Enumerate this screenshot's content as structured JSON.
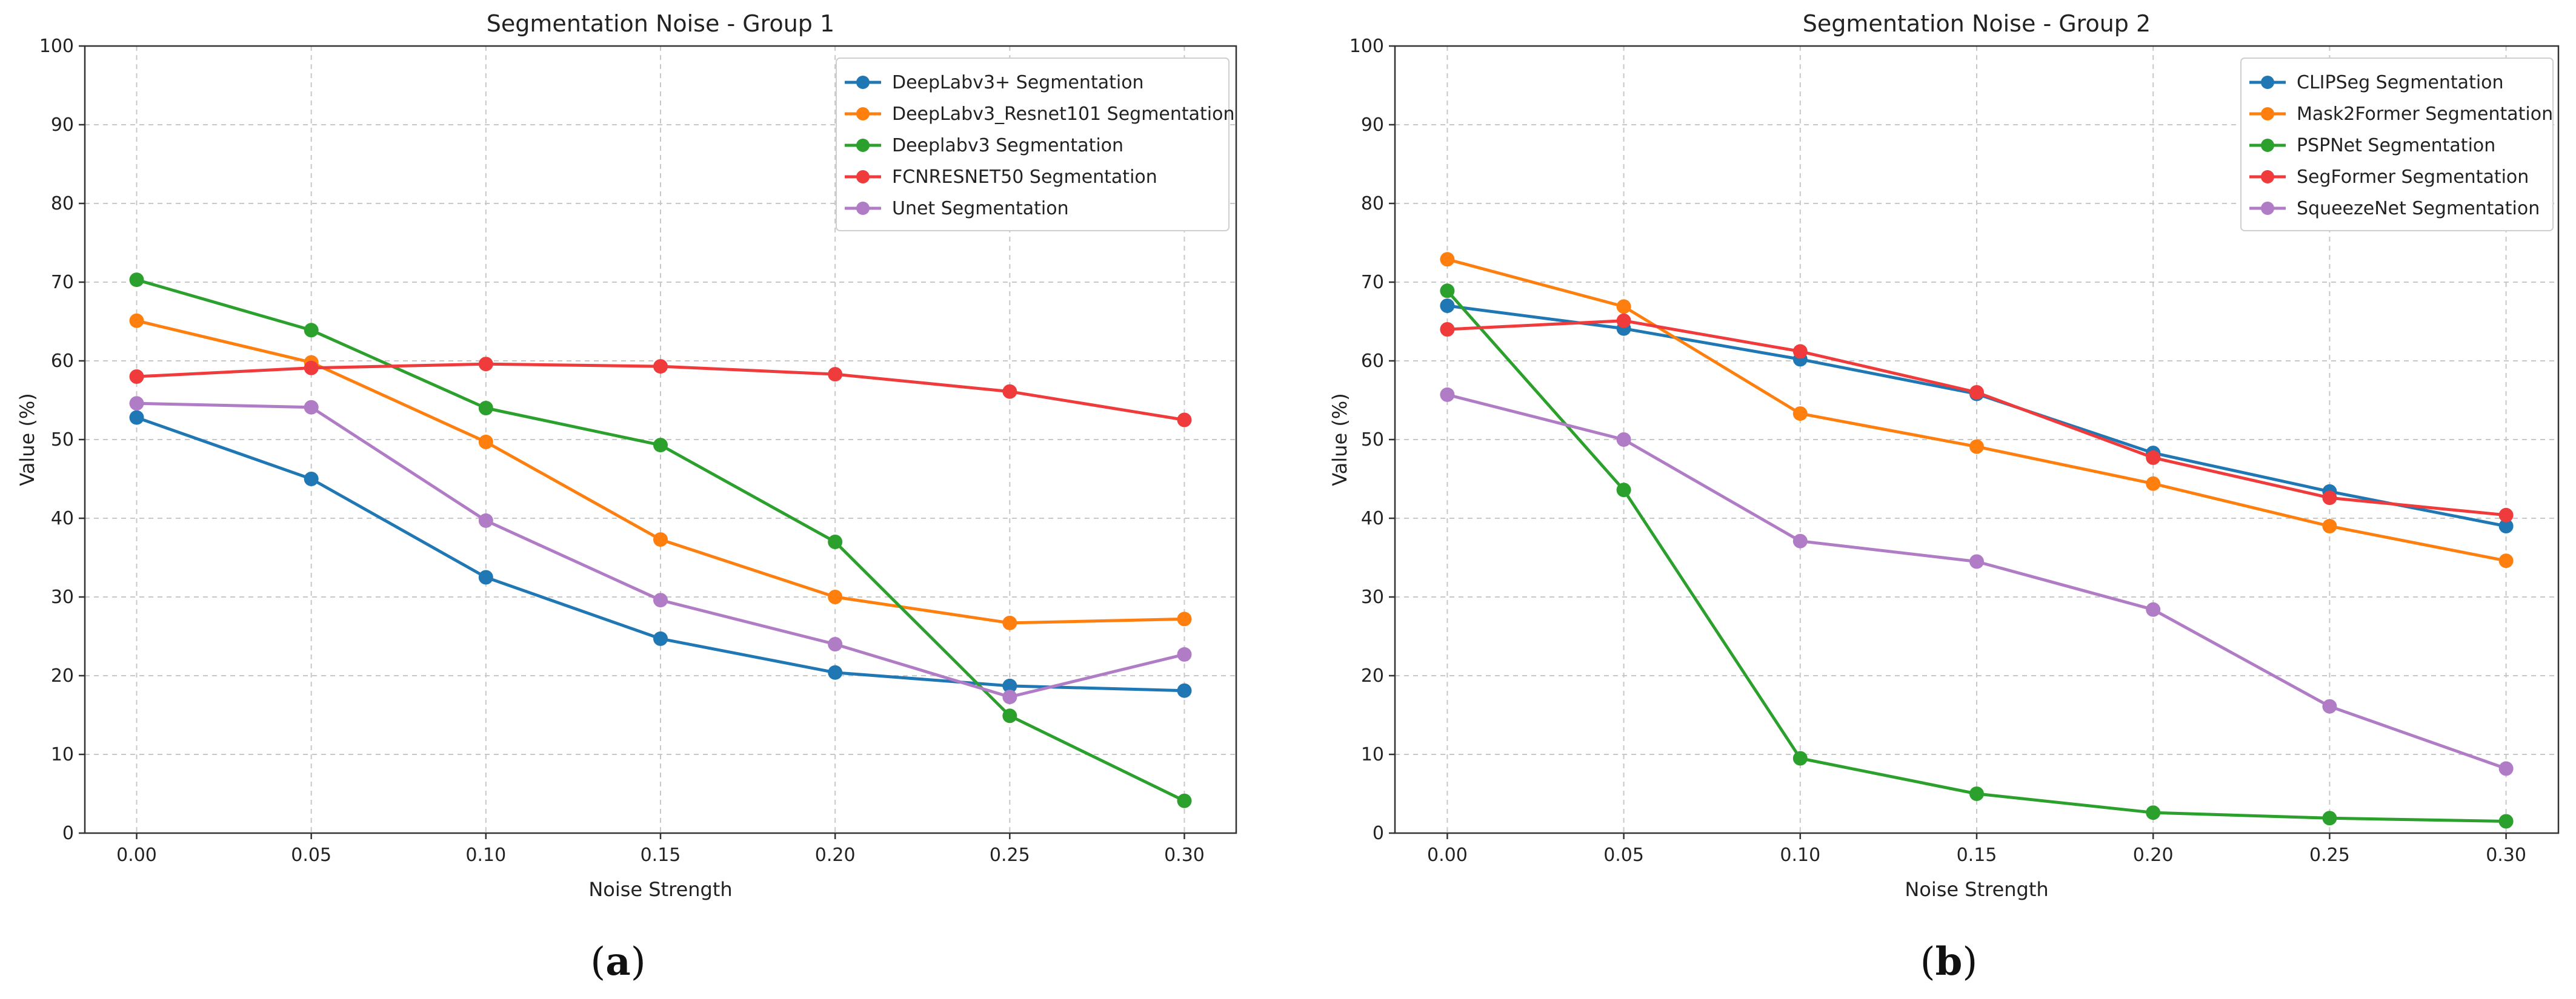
{
  "chart_data": [
    {
      "type": "line",
      "title": "Segmentation Noise - Group 1",
      "xlabel": "Noise Strength",
      "ylabel": "Value (%)",
      "x": [
        0.0,
        0.05,
        0.1,
        0.15,
        0.2,
        0.25,
        0.3
      ],
      "x_tick_labels": [
        "0.00",
        "0.05",
        "0.10",
        "0.15",
        "0.20",
        "0.25",
        "0.30"
      ],
      "y_ticks": [
        0,
        10,
        20,
        30,
        40,
        50,
        60,
        70,
        80,
        90,
        100
      ],
      "ylim": [
        0,
        100
      ],
      "grid": true,
      "legend_position": "top-right",
      "caption": "a",
      "series": [
        {
          "name": "DeepLabv3+ Segmentation",
          "color": "#1f77b4",
          "values": [
            52.8,
            45.0,
            32.5,
            24.7,
            20.4,
            18.7,
            18.1
          ]
        },
        {
          "name": "DeepLabv3_Resnet101 Segmentation",
          "color": "#ff7f0e",
          "values": [
            65.1,
            59.8,
            49.7,
            37.3,
            30.0,
            26.7,
            27.2
          ]
        },
        {
          "name": "Deeplabv3  Segmentation",
          "color": "#2ca02c",
          "values": [
            70.3,
            63.9,
            54.0,
            49.3,
            37.0,
            14.9,
            4.1
          ]
        },
        {
          "name": "FCNRESNET50 Segmentation",
          "color": "#ef3b3b",
          "values": [
            58.0,
            59.1,
            59.6,
            59.3,
            58.3,
            56.1,
            52.5
          ]
        },
        {
          "name": "Unet Segmentation",
          "color": "#b07cc6",
          "values": [
            54.6,
            54.1,
            39.7,
            29.6,
            24.0,
            17.3,
            22.7
          ]
        }
      ]
    },
    {
      "type": "line",
      "title": "Segmentation Noise - Group 2",
      "xlabel": "Noise Strength",
      "ylabel": "Value (%)",
      "x": [
        0.0,
        0.05,
        0.1,
        0.15,
        0.2,
        0.25,
        0.3
      ],
      "x_tick_labels": [
        "0.00",
        "0.05",
        "0.10",
        "0.15",
        "0.20",
        "0.25",
        "0.30"
      ],
      "y_ticks": [
        0,
        10,
        20,
        30,
        40,
        50,
        60,
        70,
        80,
        90,
        100
      ],
      "ylim": [
        0,
        100
      ],
      "grid": true,
      "legend_position": "top-right",
      "caption": "b",
      "series": [
        {
          "name": "CLIPSeg Segmentation",
          "color": "#1f77b4",
          "values": [
            67.0,
            64.1,
            60.2,
            55.8,
            48.3,
            43.4,
            39.0
          ]
        },
        {
          "name": "Mask2Former Segmentation",
          "color": "#ff7f0e",
          "values": [
            72.9,
            66.9,
            53.3,
            49.1,
            44.4,
            39.0,
            34.6
          ]
        },
        {
          "name": "PSPNet Segmentation",
          "color": "#2ca02c",
          "values": [
            68.9,
            43.6,
            9.5,
            5.0,
            2.6,
            1.9,
            1.5
          ]
        },
        {
          "name": "SegFormer Segmentation",
          "color": "#ef3b3b",
          "values": [
            64.0,
            65.1,
            61.2,
            56.0,
            47.7,
            42.6,
            40.4
          ]
        },
        {
          "name": "SqueezeNet Segmentation",
          "color": "#b07cc6",
          "values": [
            55.7,
            50.0,
            37.1,
            34.5,
            28.4,
            16.1,
            8.2
          ]
        }
      ]
    }
  ]
}
